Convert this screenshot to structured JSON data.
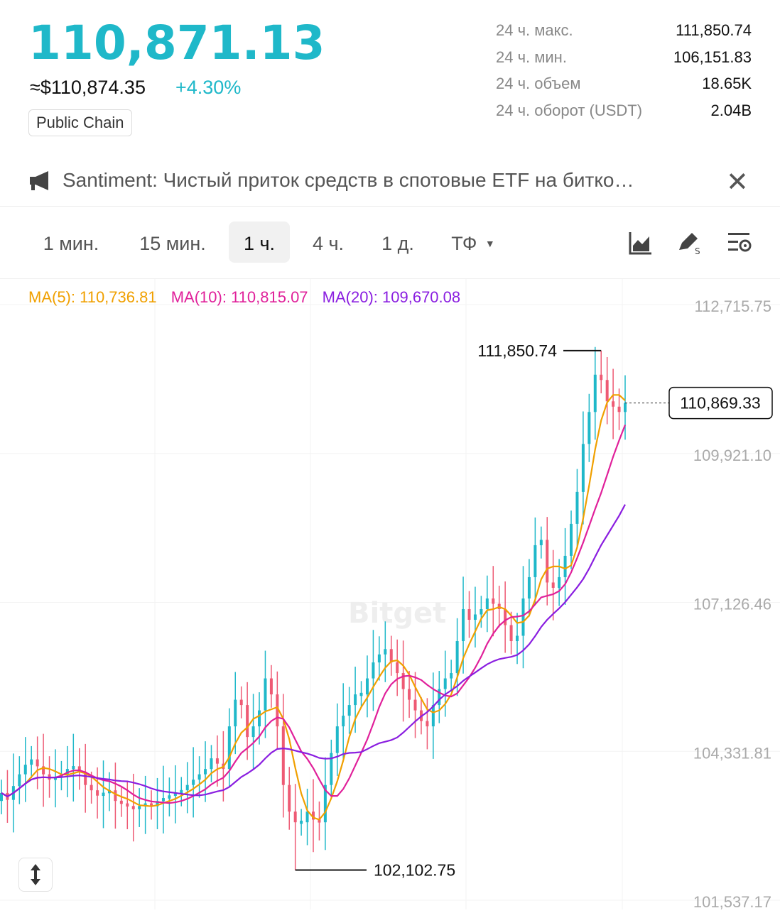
{
  "header": {
    "price": "110,871.13",
    "usd_price": "≈$110,874.35",
    "change": "+4.30%",
    "tag": "Public Chain"
  },
  "stats": [
    {
      "label": "24 ч. макс.",
      "value": "111,850.74"
    },
    {
      "label": "24 ч. мин.",
      "value": "106,151.83"
    },
    {
      "label": "24 ч. объем",
      "value": "18.65K"
    },
    {
      "label": "24 ч. оборот (USDT)",
      "value": "2.04B"
    }
  ],
  "news": {
    "text": "Santiment: Чистый приток средств в спотовые ETF на битко…",
    "icon": "megaphone-icon",
    "close_icon": "close-icon"
  },
  "toolbar": {
    "timeframes": [
      "1 мин.",
      "15 мин.",
      "1 ч.",
      "4 ч.",
      "1 д.",
      "ТФ"
    ],
    "active": "1 ч.",
    "icons": [
      "chart-type-icon",
      "drawing-tool-icon",
      "indicator-settings-icon"
    ]
  },
  "colors": {
    "up": "#1fb8c9",
    "down": "#ee5a74",
    "ma5": "#f0a000",
    "ma10": "#e0209a",
    "ma20": "#8a1ee0"
  },
  "chart_data": {
    "type": "candlestick",
    "watermark": "Bitget",
    "ma": [
      {
        "name": "MA(5)",
        "label": "MA(5): 110,736.81",
        "value": 110736.81
      },
      {
        "name": "MA(10)",
        "label": "MA(10): 110,815.07",
        "value": 110815.07
      },
      {
        "name": "MA(20)",
        "label": "MA(20): 109,670.08",
        "value": 109670.08
      }
    ],
    "y_ticks": [
      "112,715.75",
      "109,921.10",
      "107,126.46",
      "104,331.81",
      "101,537.17"
    ],
    "y_tick_values": [
      112715.75,
      109921.1,
      107126.46,
      104331.81,
      101537.17
    ],
    "ylim": [
      101537.17,
      112715.75
    ],
    "high_label": "111,850.74",
    "high_value": 111850.74,
    "low_label": "102,102.75",
    "low_value": 102102.75,
    "current_label": "110,869.33",
    "current_value": 110869.33,
    "closes": [
      103550,
      103420,
      103680,
      103900,
      104080,
      104180,
      104050,
      103900,
      103800,
      103850,
      103900,
      104000,
      104050,
      103950,
      103700,
      103600,
      103500,
      103550,
      103600,
      103400,
      103350,
      103300,
      103250,
      103300,
      103350,
      103300,
      103400,
      103450,
      103500,
      103550,
      103600,
      103700,
      103800,
      103900,
      104000,
      104200,
      104100,
      104000,
      104800,
      105300,
      105200,
      104600,
      104800,
      105100,
      105700,
      105400,
      104800,
      103700,
      103200,
      103000,
      103000,
      103200,
      103050,
      103000,
      103700,
      104300,
      104800,
      105000,
      105200,
      105400,
      105400,
      105700,
      106000,
      106150,
      106250,
      106000,
      105800,
      105500,
      105300,
      105100,
      104900,
      104800,
      105200,
      105500,
      105700,
      105800,
      106400,
      107000,
      106800,
      106900,
      107000,
      107200,
      107100,
      107000,
      106700,
      106400,
      106500,
      107200,
      107600,
      108200,
      108300,
      107500,
      107400,
      107600,
      108000,
      108600,
      109200,
      110100,
      110700,
      111400,
      111300,
      110900,
      110800,
      110700,
      110869
    ]
  },
  "pan_icon": "vertical-pan-icon"
}
